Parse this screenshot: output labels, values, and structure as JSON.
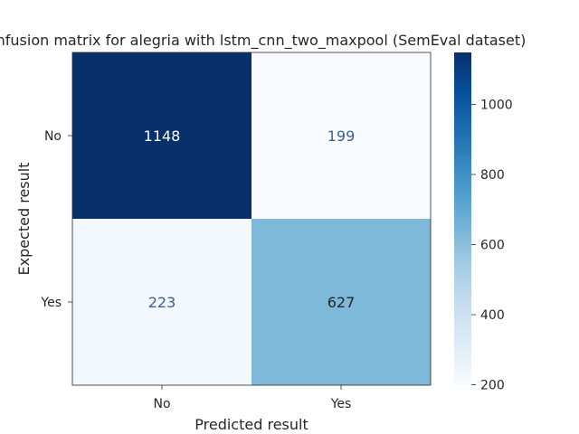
{
  "chart_data": {
    "type": "heatmap",
    "title": "Confusion matrix for alegria with lstm_cnn_two_maxpool (SemEval dataset)",
    "xlabel": "Predicted result",
    "ylabel": "Expected result",
    "x_categories": [
      "No",
      "Yes"
    ],
    "y_categories": [
      "No",
      "Yes"
    ],
    "values": [
      [
        1148,
        199
      ],
      [
        223,
        627
      ]
    ],
    "colormap": "Blues",
    "colorbar": {
      "min": 199,
      "max": 1148,
      "ticks": [
        200,
        400,
        600,
        800,
        1000
      ]
    },
    "grid": false
  }
}
